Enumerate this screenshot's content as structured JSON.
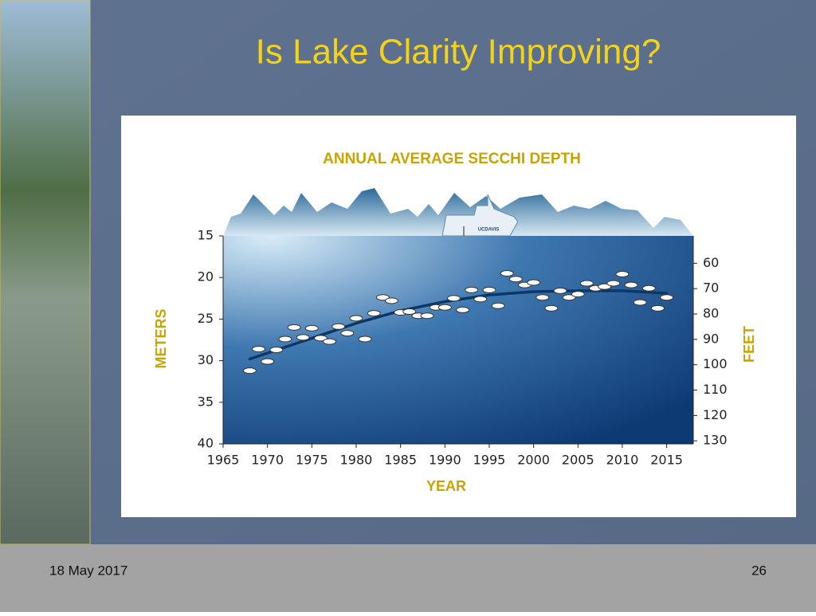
{
  "slide": {
    "title": "Is Lake Clarity Improving?",
    "date": "18 May 2017",
    "page_number": "26",
    "boat_label": "UCDAVIS"
  },
  "chart_data": {
    "type": "scatter",
    "title": "ANNUAL AVERAGE SECCHI DEPTH",
    "xlabel": "YEAR",
    "ylabel": "METERS",
    "y2label": "FEET",
    "xlim": [
      1965,
      2018
    ],
    "xticks": [
      1965,
      1970,
      1975,
      1980,
      1985,
      1990,
      1995,
      2000,
      2005,
      2010,
      2015
    ],
    "ylim": [
      15,
      40
    ],
    "yticks": [
      15,
      20,
      25,
      30,
      35,
      40
    ],
    "y_inverted": true,
    "y2lim": [
      49.2,
      131.2
    ],
    "y2ticks": [
      60,
      70,
      80,
      90,
      100,
      110,
      120,
      130
    ],
    "series": [
      {
        "color": "#ffffff",
        "x": [
          1968,
          1969,
          1970,
          1971,
          1972,
          1973,
          1974,
          1975,
          1976,
          1977,
          1978,
          1979,
          1980,
          1981,
          1982,
          1983,
          1984,
          1985,
          1986,
          1987,
          1988,
          1989,
          1990,
          1991,
          1992,
          1993,
          1994,
          1995,
          1996,
          1997,
          1998,
          1999,
          2000,
          2001,
          2002,
          2003,
          2004,
          2005,
          2006,
          2007,
          2008,
          2009,
          2010,
          2011,
          2012,
          2013,
          2014,
          2015
        ],
        "values": [
          31.2,
          28.6,
          30.1,
          28.7,
          27.4,
          26.0,
          27.2,
          26.1,
          27.3,
          27.7,
          25.9,
          26.7,
          24.9,
          27.4,
          24.3,
          22.4,
          22.8,
          24.2,
          24.1,
          24.6,
          24.6,
          23.6,
          23.6,
          22.5,
          23.9,
          21.5,
          22.6,
          21.5,
          23.4,
          19.5,
          20.2,
          20.9,
          20.6,
          22.4,
          23.7,
          21.6,
          22.4,
          22.0,
          20.7,
          21.3,
          21.1,
          20.7,
          19.6,
          20.9,
          23.0,
          21.3,
          23.7,
          22.4
        ]
      },
      {
        "type": "line",
        "color": "#0b3868",
        "x": [
          1968,
          1975,
          1980,
          1985,
          1990,
          1995,
          2000,
          2005,
          2010,
          2015
        ],
        "values": [
          29.8,
          27.3,
          25.5,
          24.0,
          22.9,
          22.1,
          21.7,
          21.6,
          21.6,
          21.9
        ]
      }
    ]
  }
}
